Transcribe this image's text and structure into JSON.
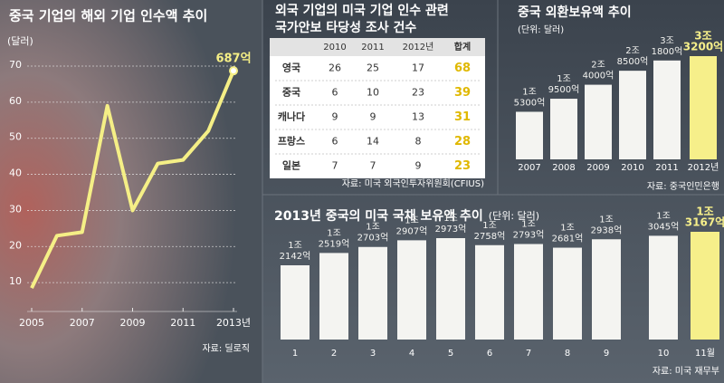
{
  "chart_data": [
    {
      "type": "line",
      "title": "중국 기업의 해외 기업 인수액 추이",
      "y_label": "(달러)",
      "x": [
        2005,
        2006,
        2007,
        2008,
        2009,
        2010,
        2011,
        2012,
        2013
      ],
      "values": [
        8.5,
        23,
        24,
        59,
        30,
        43,
        44,
        52,
        68.7
      ],
      "value_labels": [
        null,
        null,
        null,
        null,
        null,
        null,
        null,
        null,
        "687억"
      ],
      "color": "#f5ef86",
      "xlim": [
        2005,
        2013
      ],
      "xticks": [
        2005,
        2007,
        2009,
        2011,
        {
          "value": 2013,
          "label": "2013년"
        }
      ],
      "ylim": [
        0,
        70
      ],
      "yticks": [
        10,
        20,
        30,
        40,
        50,
        60,
        70
      ],
      "grid": true,
      "source": "자료: 딜로직"
    },
    {
      "type": "table",
      "title": [
        "외국 기업의 미국 기업 인수 관련",
        "국가안보 타당성 조사 건수"
      ],
      "columns": [
        "2010",
        "2011",
        "2012년",
        "합계"
      ],
      "rows": [
        [
          "영국",
          26,
          25,
          17,
          68
        ],
        [
          "중국",
          6,
          10,
          23,
          39
        ],
        [
          "캐나다",
          9,
          9,
          13,
          31
        ],
        [
          "프랑스",
          6,
          14,
          8,
          28
        ],
        [
          "일본",
          7,
          7,
          9,
          23
        ]
      ],
      "source": "자료: 미국 외국인투자위원회(CFIUS)"
    },
    {
      "type": "bar",
      "title": "중국 외환보유액 추이",
      "subtitle": "(단위: 달러)",
      "categories": [
        "2007",
        "2008",
        "2009",
        "2010",
        "2011",
        "2012년"
      ],
      "values": [
        15300,
        19500,
        24000,
        28500,
        31800,
        33200
      ],
      "value_labels": [
        [
          "1조",
          "5300억"
        ],
        [
          "1조",
          "9500억"
        ],
        [
          "2조",
          "4000억"
        ],
        [
          "2조",
          "8500억"
        ],
        [
          "3조",
          "1800억"
        ],
        [
          "3조",
          "3200억"
        ]
      ],
      "colors": [
        "#f4f4f1",
        "#f4f4f1",
        "#f4f4f1",
        "#f4f4f1",
        "#f4f4f1",
        "#f6ef8a"
      ],
      "source": "자료: 중국인민은행"
    },
    {
      "type": "bar",
      "title": "2013년 중국의 미국 국채 보유액 추이",
      "subtitle": "(단위: 달러)",
      "categories": [
        "1",
        "2",
        "3",
        "4",
        "5",
        "6",
        "7",
        "8",
        "9",
        "10",
        "11월"
      ],
      "values": [
        12142,
        12519,
        12703,
        12907,
        12973,
        12758,
        12793,
        12681,
        12938,
        13045,
        13167
      ],
      "value_labels": [
        [
          "1조",
          "2142억"
        ],
        [
          "1조",
          "2519억"
        ],
        [
          "1조",
          "2703억"
        ],
        [
          "1조",
          "2907억"
        ],
        [
          "1조",
          "2973억"
        ],
        [
          "1조",
          "2758억"
        ],
        [
          "1조",
          "2793억"
        ],
        [
          "1조",
          "2681억"
        ],
        [
          "1조",
          "2938억"
        ],
        [
          "1조",
          "3045억"
        ],
        [
          "1조",
          "3167억"
        ]
      ],
      "colors": [
        "#f4f4f1",
        "#f4f4f1",
        "#f4f4f1",
        "#f4f4f1",
        "#f4f4f1",
        "#f4f4f1",
        "#f4f4f1",
        "#f4f4f1",
        "#f4f4f1",
        "#f4f4f1",
        "#f6ef8a"
      ],
      "source": "자료: 미국 재무부"
    }
  ]
}
